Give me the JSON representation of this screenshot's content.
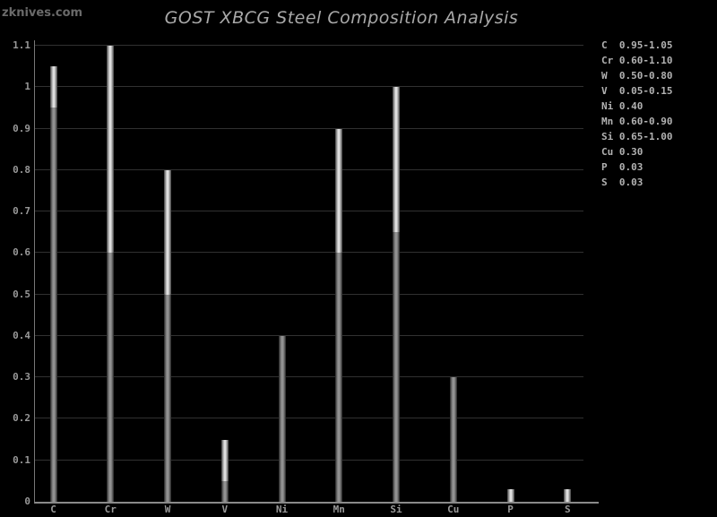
{
  "branding": "zknives.com",
  "title": "GOST XBCG Steel Composition Analysis",
  "colors": {
    "background": "#000000",
    "grid": "#313131",
    "axis": "#8a8a8a",
    "title_text": "#a9a9a9",
    "tick_text": "#989898",
    "legend_text": "#b2b2b2",
    "branding_text": "#6a6a6a",
    "bar_range_center": "#efefef",
    "bar_range_edge": "#3f3f3f",
    "bar_base_center": "#9a9a9a",
    "bar_base_edge": "#232323"
  },
  "chart_data": {
    "type": "bar",
    "title": "GOST XBCG Steel Composition Analysis",
    "xlabel": "",
    "ylabel": "",
    "ylim": [
      0,
      1.1
    ],
    "grid": true,
    "legend_position": "top-right",
    "ytick_labels": [
      "1.1",
      "1",
      "0.9",
      "0.8",
      "0.7",
      "0.6",
      "0.5",
      "0.4",
      "0.3",
      "0.2",
      "0.1",
      "0"
    ],
    "ytick_values": [
      1.1,
      1.0,
      0.9,
      0.8,
      0.7,
      0.6,
      0.5,
      0.4,
      0.3,
      0.2,
      0.1,
      0
    ],
    "categories": [
      "C",
      "Cr",
      "W",
      "V",
      "Ni",
      "Mn",
      "Si",
      "Cu",
      "P",
      "S"
    ],
    "bars": [
      {
        "element": "C",
        "min": 0.95,
        "max": 1.05,
        "style": "range",
        "display": "0.95-1.05"
      },
      {
        "element": "Cr",
        "min": 0.6,
        "max": 1.1,
        "style": "range",
        "display": "0.60-1.10"
      },
      {
        "element": "W",
        "min": 0.5,
        "max": 0.8,
        "style": "range",
        "display": "0.50-0.80"
      },
      {
        "element": "V",
        "min": 0.05,
        "max": 0.15,
        "style": "range",
        "display": "0.05-0.15"
      },
      {
        "element": "Ni",
        "min": 0,
        "max": 0.4,
        "style": "solid",
        "display": "0.40"
      },
      {
        "element": "Mn",
        "min": 0.6,
        "max": 0.9,
        "style": "range",
        "display": "0.60-0.90"
      },
      {
        "element": "Si",
        "min": 0.65,
        "max": 1.0,
        "style": "range",
        "display": "0.65-1.00"
      },
      {
        "element": "Cu",
        "min": 0,
        "max": 0.3,
        "style": "solid",
        "display": "0.30"
      },
      {
        "element": "P",
        "min": 0,
        "max": 0.03,
        "style": "max",
        "display": "0.03"
      },
      {
        "element": "S",
        "min": 0,
        "max": 0.03,
        "style": "max",
        "display": "0.03"
      }
    ]
  }
}
